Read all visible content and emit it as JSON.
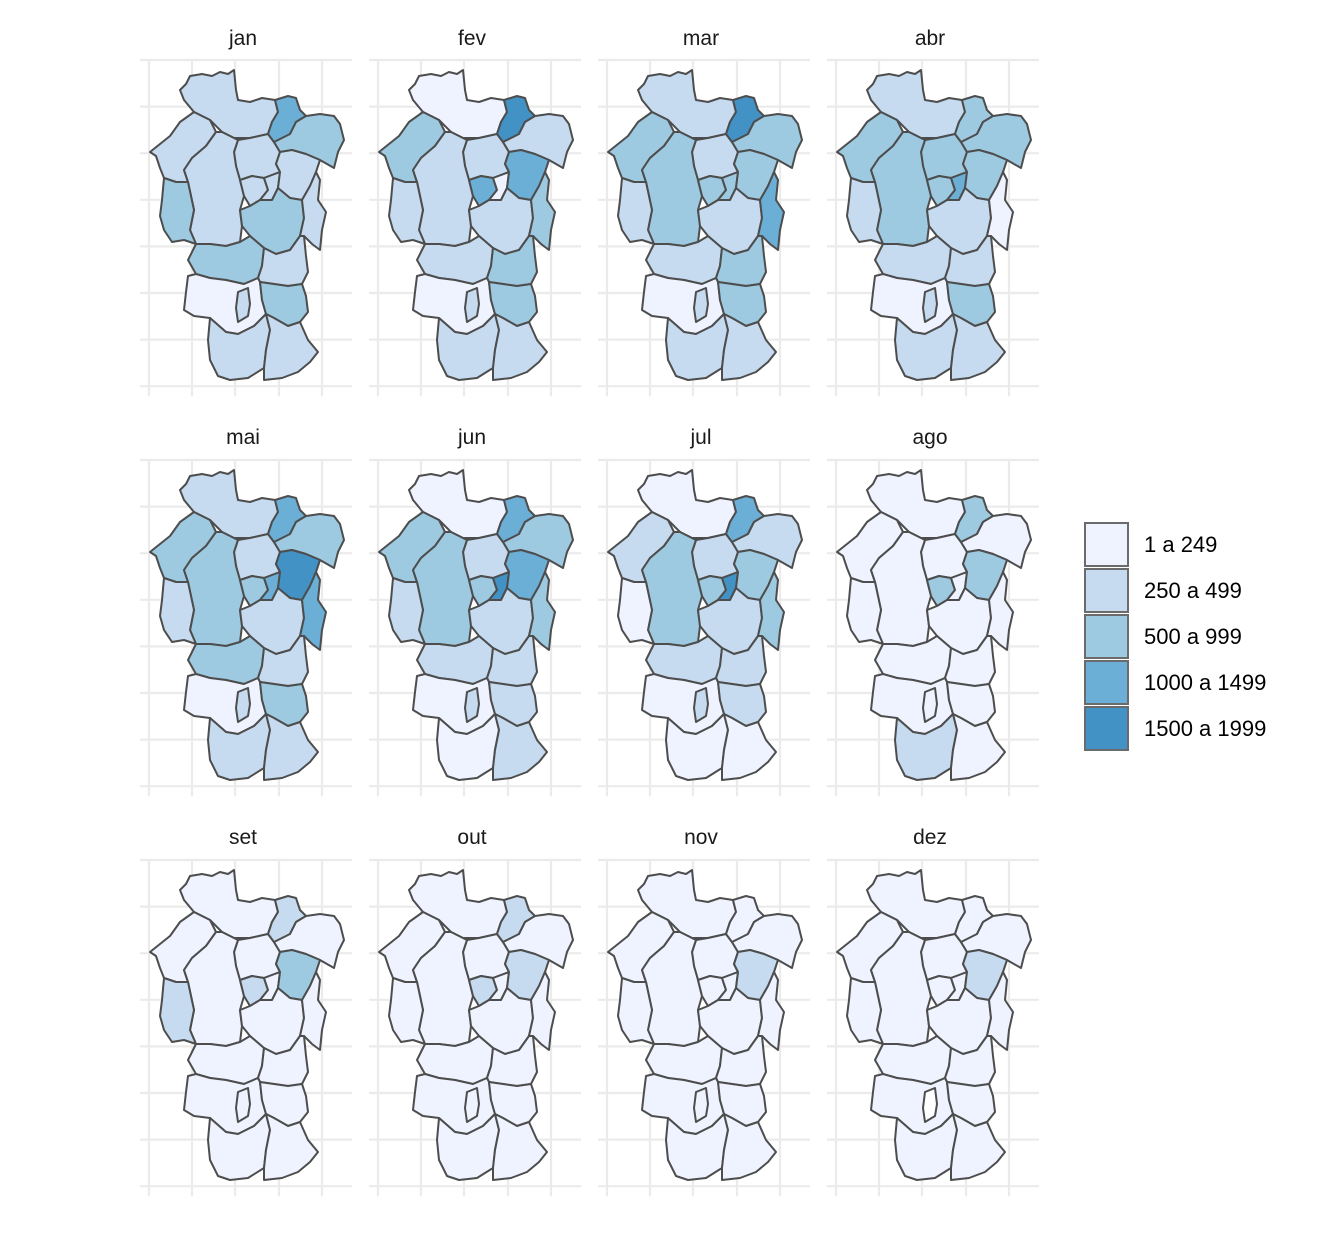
{
  "chart_data": {
    "type": "choropleth",
    "layout": "facet grid, 3 rows x 4 columns",
    "grid": true,
    "legend_position": "right",
    "colors": {
      "class_1": "#eff3ff",
      "class_2": "#c6dbef",
      "class_3": "#9ecae1",
      "class_4": "#6baed6",
      "class_5": "#4292c6",
      "border": "#4d4d4d",
      "grid": "#ebebeb"
    },
    "legend": {
      "classes": [
        "1 a 249",
        "250 a 499",
        "500 a 999",
        "1000 a 1499",
        "1500 a 1999"
      ]
    },
    "panels": [
      {
        "label": "jan",
        "classes": [
          2,
          2,
          4,
          3,
          2,
          2,
          3,
          2,
          2,
          2,
          3,
          2,
          3,
          2,
          1,
          3,
          2,
          2,
          2
        ]
      },
      {
        "label": "fev",
        "classes": [
          1,
          2,
          5,
          2,
          3,
          2,
          2,
          4,
          1,
          4,
          2,
          3,
          2,
          3,
          1,
          3,
          2,
          2,
          2
        ]
      },
      {
        "label": "mar",
        "classes": [
          2,
          2,
          5,
          3,
          3,
          3,
          2,
          3,
          3,
          3,
          2,
          4,
          2,
          3,
          1,
          3,
          2,
          2,
          2
        ]
      },
      {
        "label": "abr",
        "classes": [
          2,
          3,
          3,
          3,
          3,
          3,
          2,
          3,
          4,
          3,
          2,
          1,
          2,
          2,
          1,
          3,
          2,
          2,
          2
        ]
      },
      {
        "label": "mai",
        "classes": [
          2,
          2,
          4,
          3,
          3,
          3,
          2,
          3,
          4,
          5,
          2,
          4,
          3,
          2,
          1,
          3,
          2,
          2,
          2
        ]
      },
      {
        "label": "jun",
        "classes": [
          1,
          2,
          4,
          3,
          3,
          3,
          2,
          3,
          5,
          4,
          2,
          3,
          2,
          2,
          1,
          2,
          1,
          2,
          2
        ]
      },
      {
        "label": "jul",
        "classes": [
          1,
          2,
          4,
          2,
          2,
          3,
          1,
          3,
          5,
          3,
          2,
          3,
          2,
          2,
          1,
          2,
          1,
          1,
          2
        ]
      },
      {
        "label": "ago",
        "classes": [
          1,
          1,
          3,
          1,
          1,
          1,
          1,
          3,
          1,
          3,
          1,
          1,
          1,
          1,
          1,
          1,
          2,
          1,
          1
        ]
      },
      {
        "label": "set",
        "classes": [
          1,
          1,
          2,
          1,
          1,
          1,
          2,
          2,
          1,
          3,
          1,
          1,
          1,
          1,
          1,
          1,
          1,
          1,
          1
        ]
      },
      {
        "label": "out",
        "classes": [
          1,
          1,
          2,
          1,
          1,
          1,
          1,
          2,
          1,
          2,
          1,
          1,
          1,
          1,
          1,
          1,
          1,
          1,
          1
        ]
      },
      {
        "label": "nov",
        "classes": [
          1,
          1,
          1,
          1,
          1,
          1,
          1,
          1,
          1,
          2,
          1,
          1,
          1,
          1,
          1,
          1,
          1,
          1,
          1
        ]
      },
      {
        "label": "dez",
        "classes": [
          1,
          1,
          1,
          1,
          1,
          1,
          1,
          1,
          1,
          2,
          1,
          1,
          1,
          1,
          1,
          1,
          1,
          1,
          0
        ]
      }
    ]
  }
}
